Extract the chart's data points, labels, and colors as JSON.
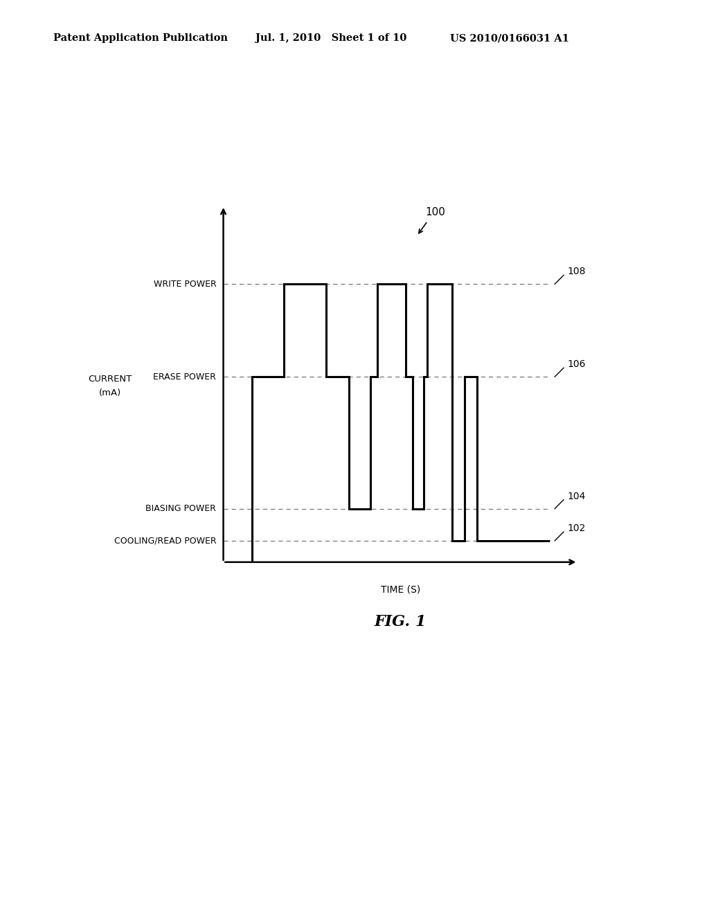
{
  "background_color": "#ffffff",
  "header_left": "Patent Application Publication",
  "header_mid": "Jul. 1, 2010   Sheet 1 of 10",
  "header_right": "US 2010/0166031 A1",
  "fig_label": "FIG. 1",
  "diagram_label": "100",
  "ylabel_line1": "CURRENT",
  "ylabel_line2": "(mA)",
  "xlabel": "TIME (S)",
  "power_levels": {
    "write": 0.78,
    "erase": 0.52,
    "biasing": 0.15,
    "cooling_read": 0.06
  },
  "power_labels": {
    "write": "WRITE POWER",
    "erase": "ERASE POWER",
    "biasing": "BIASING POWER",
    "cooling_read": "COOLING/READ POWER"
  },
  "ref_numbers": {
    "write": "108",
    "erase": "106",
    "biasing": "104",
    "cooling_read": "102"
  },
  "signal_color": "#000000",
  "dashed_color": "#888888"
}
